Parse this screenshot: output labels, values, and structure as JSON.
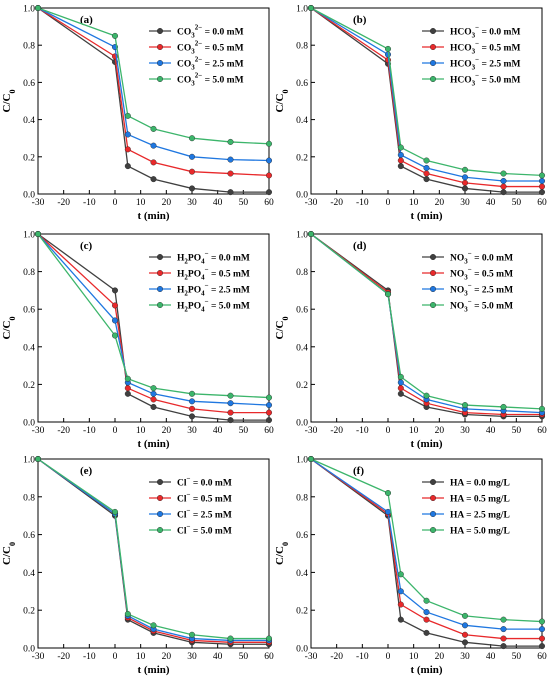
{
  "chart_data": [
    {
      "type": "line",
      "panel": "(a)",
      "xlabel": "t (min)",
      "ylabel": "C/C0",
      "xlim": [
        -30,
        60
      ],
      "ylim": [
        0,
        1.0
      ],
      "xticks": [
        "-30",
        "-20",
        "-10",
        "0",
        "10",
        "20",
        "30",
        "40",
        "50",
        "60"
      ],
      "yticks": [
        "0.0",
        "0.2",
        "0.4",
        "0.6",
        "0.8",
        "1.0"
      ],
      "x": [
        -30,
        0,
        5,
        15,
        30,
        45,
        60
      ],
      "legend_position": "top-right",
      "series": [
        {
          "species": "CO",
          "sub": "3",
          "sup": "2−",
          "value": "= 0.0 mM",
          "color": "#404040",
          "values": [
            1.0,
            0.71,
            0.15,
            0.08,
            0.03,
            0.01,
            0.01
          ]
        },
        {
          "species": "CO",
          "sub": "3",
          "sup": "2−",
          "value": "= 0.5 mM",
          "color": "#e8292b",
          "values": [
            1.0,
            0.74,
            0.24,
            0.17,
            0.12,
            0.11,
            0.1
          ]
        },
        {
          "species": "CO",
          "sub": "3",
          "sup": "2−",
          "value": "= 2.5 mM",
          "color": "#1f77e0",
          "values": [
            1.0,
            0.79,
            0.32,
            0.26,
            0.2,
            0.185,
            0.18
          ]
        },
        {
          "species": "CO",
          "sub": "3",
          "sup": "2−",
          "value": "= 5.0 mM",
          "color": "#3cb56b",
          "values": [
            1.0,
            0.85,
            0.42,
            0.35,
            0.3,
            0.28,
            0.27
          ]
        }
      ]
    },
    {
      "type": "line",
      "panel": "(b)",
      "xlabel": "t (min)",
      "ylabel": "C/C0",
      "xlim": [
        -30,
        60
      ],
      "ylim": [
        0,
        1.0
      ],
      "xticks": [
        "-30",
        "-20",
        "-10",
        "0",
        "10",
        "20",
        "30",
        "40",
        "50",
        "60"
      ],
      "yticks": [
        "0.0",
        "0.2",
        "0.4",
        "0.6",
        "0.8",
        "1.0"
      ],
      "x": [
        -30,
        0,
        5,
        15,
        30,
        45,
        60
      ],
      "legend_position": "top-right",
      "series": [
        {
          "species": "HCO",
          "sub": "3",
          "sup": "−",
          "value": "= 0.0 mM",
          "color": "#404040",
          "values": [
            1.0,
            0.7,
            0.15,
            0.08,
            0.03,
            0.01,
            0.01
          ]
        },
        {
          "species": "HCO",
          "sub": "3",
          "sup": "−",
          "value": "= 0.5 mM",
          "color": "#e8292b",
          "values": [
            1.0,
            0.72,
            0.18,
            0.11,
            0.06,
            0.04,
            0.04
          ]
        },
        {
          "species": "HCO",
          "sub": "3",
          "sup": "−",
          "value": "= 2.5 mM",
          "color": "#1f77e0",
          "values": [
            1.0,
            0.75,
            0.21,
            0.14,
            0.09,
            0.07,
            0.07
          ]
        },
        {
          "species": "HCO",
          "sub": "3",
          "sup": "−",
          "value": "= 5.0 mM",
          "color": "#3cb56b",
          "values": [
            1.0,
            0.78,
            0.25,
            0.18,
            0.13,
            0.11,
            0.1
          ]
        }
      ]
    },
    {
      "type": "line",
      "panel": "(c)",
      "xlabel": "t (min)",
      "ylabel": "C/C0",
      "xlim": [
        -30,
        60
      ],
      "ylim": [
        0,
        1.0
      ],
      "xticks": [
        "-30",
        "-20",
        "-10",
        "0",
        "10",
        "20",
        "30",
        "40",
        "50",
        "60"
      ],
      "yticks": [
        "0.0",
        "0.2",
        "0.4",
        "0.6",
        "0.8",
        "1.0"
      ],
      "x": [
        -30,
        0,
        5,
        15,
        30,
        45,
        60
      ],
      "legend_position": "top-right",
      "series": [
        {
          "species": "H",
          "sub": "2",
          "species2": "PO",
          "sub2": "4",
          "sup": "−",
          "value": "= 0.0 mM",
          "color": "#404040",
          "values": [
            1.0,
            0.7,
            0.15,
            0.08,
            0.03,
            0.01,
            0.01
          ]
        },
        {
          "species": "H",
          "sub": "2",
          "species2": "PO",
          "sub2": "4",
          "sup": "−",
          "value": "= 0.5 mM",
          "color": "#e8292b",
          "values": [
            1.0,
            0.62,
            0.18,
            0.12,
            0.07,
            0.05,
            0.05
          ]
        },
        {
          "species": "H",
          "sub": "2",
          "species2": "PO",
          "sub2": "4",
          "sup": "−",
          "value": "= 2.5 mM",
          "color": "#1f77e0",
          "values": [
            1.0,
            0.54,
            0.21,
            0.15,
            0.11,
            0.1,
            0.09
          ]
        },
        {
          "species": "H",
          "sub": "2",
          "species2": "PO",
          "sub2": "4",
          "sup": "−",
          "value": "= 5.0 mM",
          "color": "#3cb56b",
          "values": [
            1.0,
            0.46,
            0.23,
            0.18,
            0.15,
            0.14,
            0.13
          ]
        }
      ]
    },
    {
      "type": "line",
      "panel": "(d)",
      "xlabel": "t (min)",
      "ylabel": "C/C0",
      "xlim": [
        -30,
        60
      ],
      "ylim": [
        0,
        1.0
      ],
      "xticks": [
        "-30",
        "-20",
        "-10",
        "0",
        "10",
        "20",
        "30",
        "40",
        "50",
        "60"
      ],
      "yticks": [
        "0.0",
        "0.2",
        "0.4",
        "0.6",
        "0.8",
        "1.0"
      ],
      "x": [
        -30,
        0,
        5,
        15,
        30,
        45,
        60
      ],
      "legend_position": "top-right",
      "series": [
        {
          "species": "NO",
          "sub": "3",
          "sup": "−",
          "value": "= 0.0 mM",
          "color": "#404040",
          "values": [
            1.0,
            0.7,
            0.15,
            0.08,
            0.04,
            0.03,
            0.03
          ]
        },
        {
          "species": "NO",
          "sub": "3",
          "sup": "−",
          "value": "= 0.5 mM",
          "color": "#e8292b",
          "values": [
            1.0,
            0.69,
            0.18,
            0.1,
            0.05,
            0.04,
            0.04
          ]
        },
        {
          "species": "NO",
          "sub": "3",
          "sup": "−",
          "value": "= 2.5 mM",
          "color": "#1f77e0",
          "values": [
            1.0,
            0.68,
            0.21,
            0.12,
            0.07,
            0.06,
            0.05
          ]
        },
        {
          "species": "NO",
          "sub": "3",
          "sup": "−",
          "value": "= 5.0 mM",
          "color": "#3cb56b",
          "values": [
            1.0,
            0.68,
            0.24,
            0.14,
            0.09,
            0.08,
            0.07
          ]
        }
      ]
    },
    {
      "type": "line",
      "panel": "(e)",
      "xlabel": "t (min)",
      "ylabel": "C/C0",
      "xlim": [
        -30,
        60
      ],
      "ylim": [
        0,
        1.0
      ],
      "xticks": [
        "-30",
        "-20",
        "-10",
        "0",
        "10",
        "20",
        "30",
        "40",
        "50",
        "60"
      ],
      "yticks": [
        "0.0",
        "0.2",
        "0.4",
        "0.6",
        "0.8",
        "1.0"
      ],
      "x": [
        -30,
        0,
        5,
        15,
        30,
        45,
        60
      ],
      "legend_position": "top-right",
      "series": [
        {
          "species": "Cl",
          "sub": "",
          "sup": "−",
          "value": "= 0.0 mM",
          "color": "#404040",
          "values": [
            1.0,
            0.7,
            0.15,
            0.08,
            0.03,
            0.02,
            0.02
          ]
        },
        {
          "species": "Cl",
          "sub": "",
          "sup": "−",
          "value": "= 0.5 mM",
          "color": "#e8292b",
          "values": [
            1.0,
            0.71,
            0.16,
            0.09,
            0.04,
            0.03,
            0.03
          ]
        },
        {
          "species": "Cl",
          "sub": "",
          "sup": "−",
          "value": "= 2.5 mM",
          "color": "#1f77e0",
          "values": [
            1.0,
            0.71,
            0.17,
            0.1,
            0.05,
            0.04,
            0.04
          ]
        },
        {
          "species": "Cl",
          "sub": "",
          "sup": "−",
          "value": "= 5.0 mM",
          "color": "#3cb56b",
          "values": [
            1.0,
            0.72,
            0.18,
            0.12,
            0.07,
            0.05,
            0.05
          ]
        }
      ]
    },
    {
      "type": "line",
      "panel": "(f)",
      "xlabel": "t (min)",
      "ylabel": "C/C0",
      "xlim": [
        -30,
        60
      ],
      "ylim": [
        0,
        1.0
      ],
      "xticks": [
        "-30",
        "-20",
        "-10",
        "0",
        "10",
        "20",
        "30",
        "40",
        "50",
        "60"
      ],
      "yticks": [
        "0.0",
        "0.2",
        "0.4",
        "0.6",
        "0.8",
        "1.0"
      ],
      "x": [
        -30,
        0,
        5,
        15,
        30,
        45,
        60
      ],
      "legend_position": "top-right",
      "series": [
        {
          "species": "HA",
          "sub": "",
          "sup": "",
          "value": "= 0.0 mg/L",
          "color": "#404040",
          "values": [
            1.0,
            0.7,
            0.15,
            0.08,
            0.03,
            0.01,
            0.01
          ]
        },
        {
          "species": "HA",
          "sub": "",
          "sup": "",
          "value": "= 0.5 mg/L",
          "color": "#e8292b",
          "values": [
            1.0,
            0.71,
            0.23,
            0.15,
            0.07,
            0.05,
            0.05
          ]
        },
        {
          "species": "HA",
          "sub": "",
          "sup": "",
          "value": "= 2.5 mg/L",
          "color": "#1f77e0",
          "values": [
            1.0,
            0.72,
            0.3,
            0.19,
            0.12,
            0.1,
            0.1
          ]
        },
        {
          "species": "HA",
          "sub": "",
          "sup": "",
          "value": "= 5.0 mg/L",
          "color": "#3cb56b",
          "values": [
            1.0,
            0.82,
            0.39,
            0.25,
            0.17,
            0.15,
            0.14
          ]
        }
      ]
    }
  ]
}
